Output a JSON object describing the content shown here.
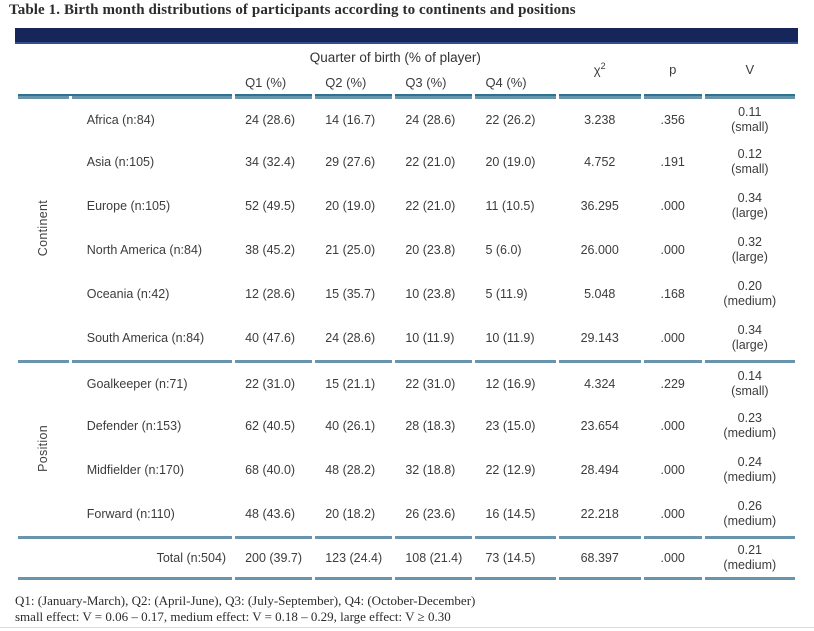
{
  "title": "Table 1. Birth month distributions of participants according to continents and positions",
  "colors": {
    "header_bar": "#16265b",
    "header_rule_teal": "#2f7190",
    "section_rule_steel": "#6795ac",
    "text": "#3c3c3c"
  },
  "table": {
    "header": {
      "quarter_group": "Quarter of birth (% of player)",
      "columns": [
        "Q1 (%)",
        "Q2 (%)",
        "Q3 (%)",
        "Q4 (%)"
      ],
      "chi": "χ",
      "chi_sup": "2",
      "p": "p",
      "v": "V"
    },
    "sections": [
      {
        "group": "Continent",
        "rows": [
          {
            "label": "Africa (n:84)",
            "q1": "24 (28.6)",
            "q2": "14 (16.7)",
            "q3": "24 (28.6)",
            "q4": "22 (26.2)",
            "chi": "3.238",
            "p": ".356",
            "v": "0.11",
            "effect": "(small)"
          },
          {
            "label": "Asia (n:105)",
            "q1": "34 (32.4)",
            "q2": "29 (27.6)",
            "q3": "22 (21.0)",
            "q4": "20 (19.0)",
            "chi": "4.752",
            "p": ".191",
            "v": "0.12",
            "effect": "(small)"
          },
          {
            "label": "Europe (n:105)",
            "q1": "52 (49.5)",
            "q2": "20 (19.0)",
            "q3": "22 (21.0)",
            "q4": "11 (10.5)",
            "chi": "36.295",
            "p": ".000",
            "v": "0.34",
            "effect": "(large)"
          },
          {
            "label": "North America (n:84)",
            "q1": "38 (45.2)",
            "q2": "21 (25.0)",
            "q3": "20 (23.8)",
            "q4": "5 (6.0)",
            "chi": "26.000",
            "p": ".000",
            "v": "0.32",
            "effect": "(large)"
          },
          {
            "label": "Oceania (n:42)",
            "q1": "12 (28.6)",
            "q2": "15 (35.7)",
            "q3": "10 (23.8)",
            "q4": "5 (11.9)",
            "chi": "5.048",
            "p": ".168",
            "v": "0.20",
            "effect": "(medium)"
          },
          {
            "label": "South America (n:84)",
            "q1": "40 (47.6)",
            "q2": "24 (28.6)",
            "q3": "10 (11.9)",
            "q4": "10 (11.9)",
            "chi": "29.143",
            "p": ".000",
            "v": "0.34",
            "effect": "(large)"
          }
        ]
      },
      {
        "group": "Position",
        "rows": [
          {
            "label": "Goalkeeper (n:71)",
            "q1": "22 (31.0)",
            "q2": "15 (21.1)",
            "q3": "22 (31.0)",
            "q4": "12 (16.9)",
            "chi": "4.324",
            "p": ".229",
            "v": "0.14",
            "effect": "(small)"
          },
          {
            "label": "Defender (n:153)",
            "q1": "62 (40.5)",
            "q2": "40 (26.1)",
            "q3": "28 (18.3)",
            "q4": "23 (15.0)",
            "chi": "23.654",
            "p": ".000",
            "v": "0.23",
            "effect": "(medium)"
          },
          {
            "label": "Midfielder (n:170)",
            "q1": "68 (40.0)",
            "q2": "48 (28.2)",
            "q3": "32 (18.8)",
            "q4": "22 (12.9)",
            "chi": "28.494",
            "p": ".000",
            "v": "0.24",
            "effect": "(medium)"
          },
          {
            "label": "Forward (n:110)",
            "q1": "48 (43.6)",
            "q2": "20 (18.2)",
            "q3": "26 (23.6)",
            "q4": "16 (14.5)",
            "chi": "22.218",
            "p": ".000",
            "v": "0.26",
            "effect": "(medium)"
          }
        ]
      }
    ],
    "total": {
      "label": "Total (n:504)",
      "q1": "200 (39.7)",
      "q2": "123 (24.4)",
      "q3": "108 (21.4)",
      "q4": "73 (14.5)",
      "chi": "68.397",
      "p": ".000",
      "v": "0.21",
      "effect": "(medium)"
    }
  },
  "footnotes": [
    "Q1: (January-March), Q2: (April-June), Q3: (July-September), Q4: (October-December)",
    "small effect: V = 0.06 – 0.17, medium effect: V = 0.18 – 0.29, large effect: V ≥ 0.30"
  ]
}
